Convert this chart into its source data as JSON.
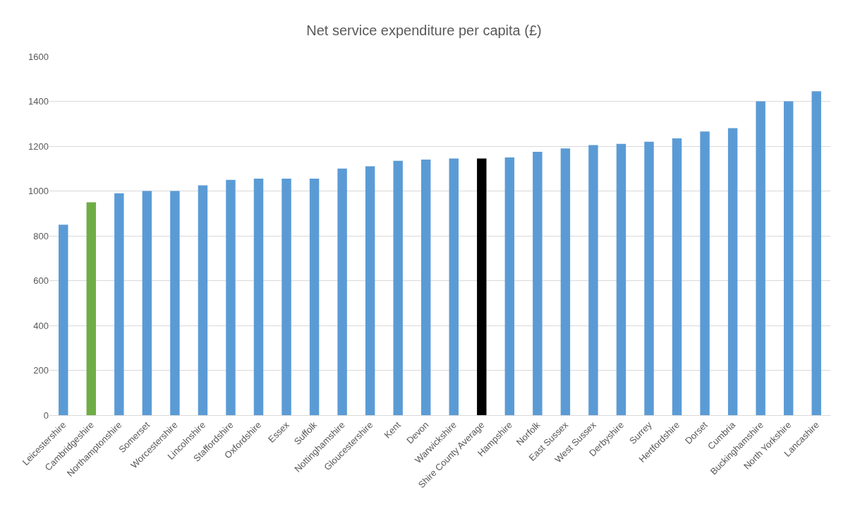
{
  "chart_data": {
    "type": "bar",
    "title": "Net service expenditure per capita (£)",
    "categories": [
      "Leicestershire",
      "Cambridgeshire",
      "Northamptonshire",
      "Somerset",
      "Worcestershire",
      "Lincolnshire",
      "Staffordshire",
      "Oxfordshire",
      "Essex",
      "Suffolk",
      "Nottinghamshire",
      "Gloucestershire",
      "Kent",
      "Devon",
      "Warwickshire",
      "Shire County Average",
      "Hampshire",
      "Norfolk",
      "East Sussex",
      "West Sussex",
      "Derbyshire",
      "Surrey",
      "Hertfordshire",
      "Dorset",
      "Cumbria",
      "Buckinghamshire",
      "North Yorkshire",
      "Lancashire"
    ],
    "values": [
      850,
      950,
      990,
      1000,
      1000,
      1025,
      1050,
      1055,
      1055,
      1055,
      1100,
      1110,
      1135,
      1140,
      1145,
      1145,
      1150,
      1175,
      1190,
      1205,
      1210,
      1220,
      1235,
      1265,
      1280,
      1400,
      1400,
      1445
    ],
    "colors": [
      "#5b9bd5",
      "#70ad47",
      "#5b9bd5",
      "#5b9bd5",
      "#5b9bd5",
      "#5b9bd5",
      "#5b9bd5",
      "#5b9bd5",
      "#5b9bd5",
      "#5b9bd5",
      "#5b9bd5",
      "#5b9bd5",
      "#5b9bd5",
      "#5b9bd5",
      "#5b9bd5",
      "#000000",
      "#5b9bd5",
      "#5b9bd5",
      "#5b9bd5",
      "#5b9bd5",
      "#5b9bd5",
      "#5b9bd5",
      "#5b9bd5",
      "#5b9bd5",
      "#5b9bd5",
      "#5b9bd5",
      "#5b9bd5",
      "#5b9bd5"
    ],
    "ylim": [
      0,
      1600
    ],
    "yticks": [
      0,
      200,
      400,
      600,
      800,
      1000,
      1200,
      1400,
      1600
    ],
    "grid": "y"
  }
}
